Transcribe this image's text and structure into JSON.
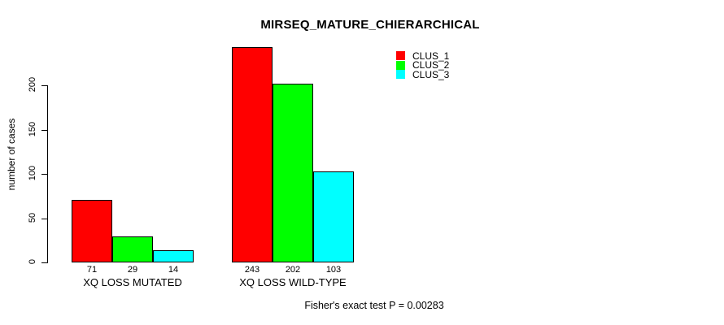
{
  "title": "MIRSEQ_MATURE_CHIERARCHICAL",
  "caption": "Fisher's exact test P = 0.00283",
  "chart_data": {
    "type": "bar",
    "title": "MIRSEQ_MATURE_CHIERARCHICAL",
    "xlabel": "",
    "ylabel": "number of cases",
    "categories": [
      "XQ LOSS MUTATED",
      "XQ LOSS WILD-TYPE"
    ],
    "series": [
      {
        "name": "CLUS_1",
        "color": "#ff0000",
        "values": [
          71,
          243
        ]
      },
      {
        "name": "CLUS_2",
        "color": "#00ff00",
        "values": [
          29,
          202
        ]
      },
      {
        "name": "CLUS_3",
        "color": "#00ffff",
        "values": [
          14,
          103
        ]
      }
    ],
    "bar_value_labels": [
      [
        "71",
        "29",
        "14"
      ],
      [
        "243",
        "202",
        "103"
      ]
    ],
    "yticks": [
      0,
      50,
      100,
      150,
      200
    ],
    "ylim": [
      0,
      200
    ],
    "grid": false,
    "legend_position": "top-right",
    "legend": [
      {
        "label": "CLUS_1",
        "color": "#ff0000"
      },
      {
        "label": "CLUS_2",
        "color": "#00ff00"
      },
      {
        "label": "CLUS_3",
        "color": "#00ffff"
      }
    ],
    "annotation": "Fisher's exact test P = 0.00283"
  }
}
